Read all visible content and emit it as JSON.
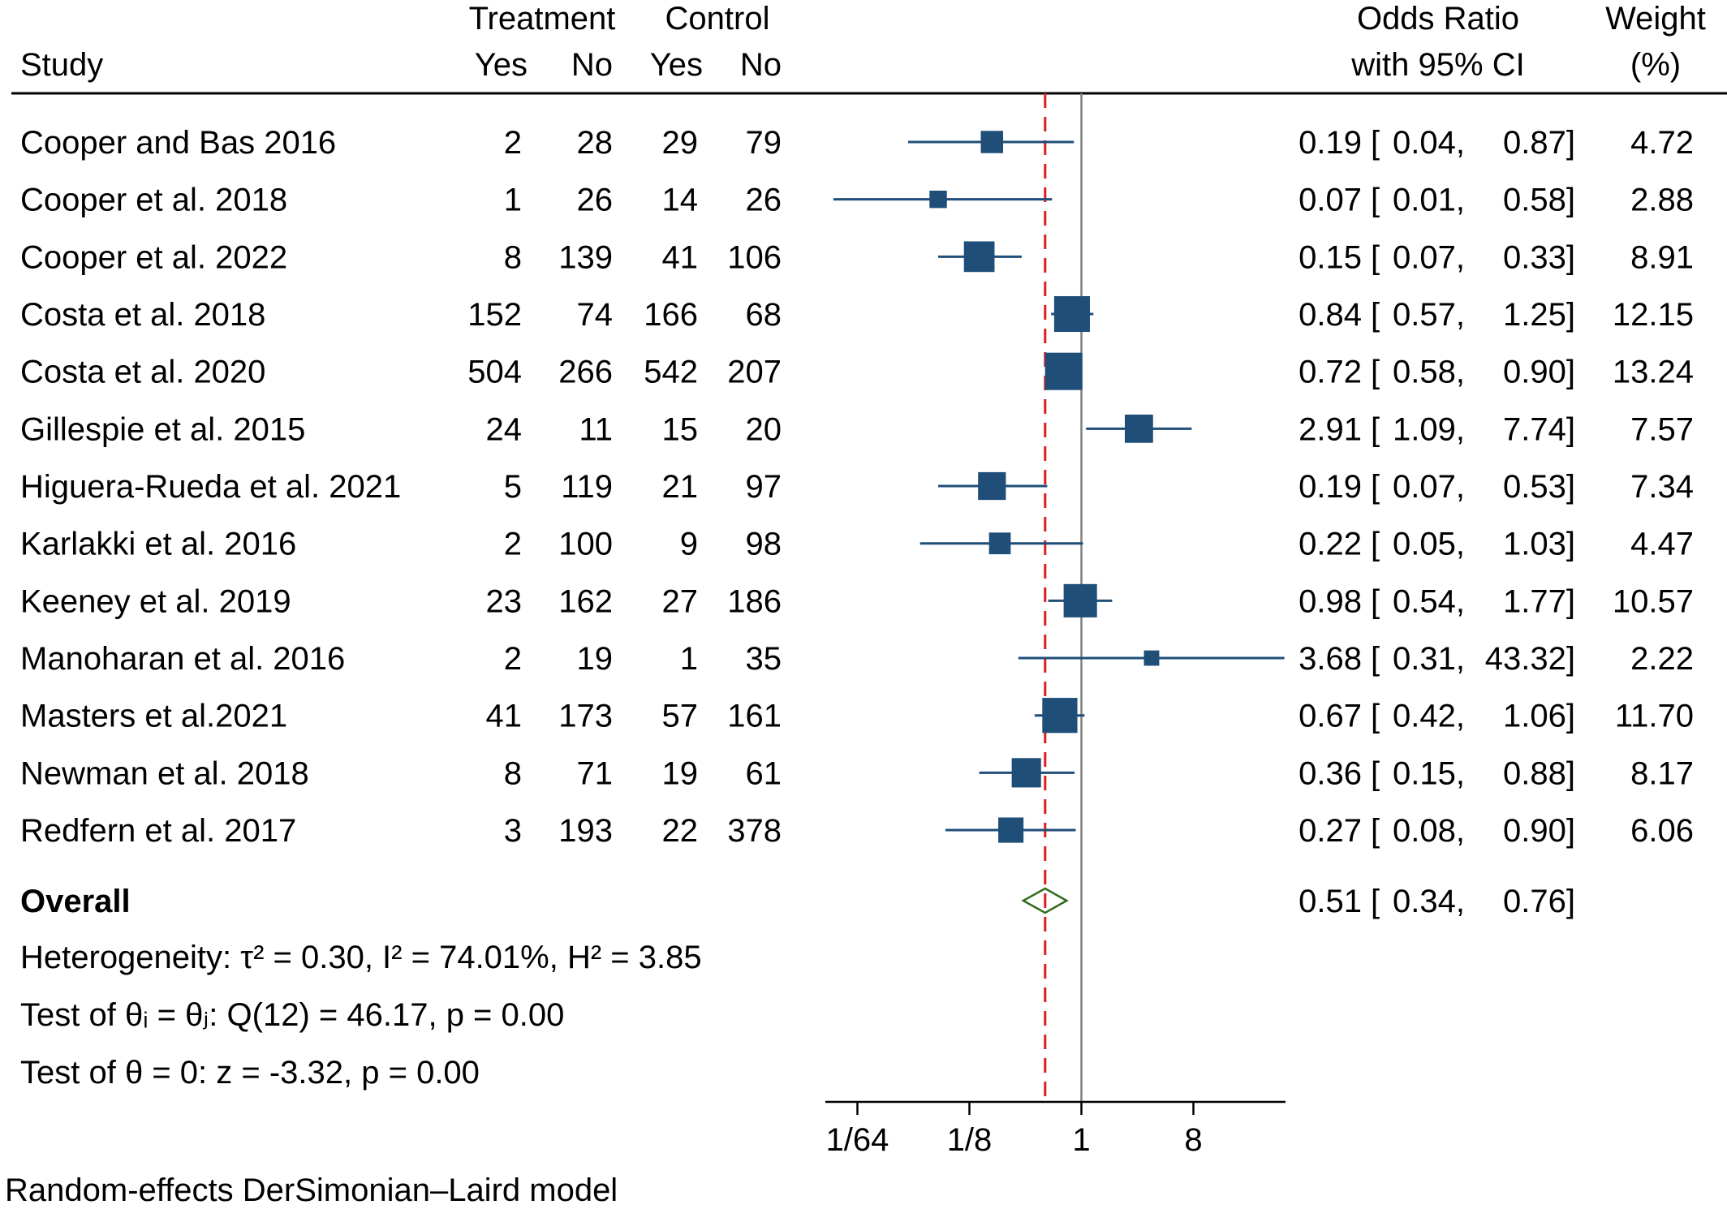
{
  "chart_data": {
    "type": "forest",
    "x_scale": "log2",
    "xlim": [
      0.0078125,
      32
    ],
    "xticks": [
      {
        "value": 0.015625,
        "label": "1/64"
      },
      {
        "value": 0.125,
        "label": "1/8"
      },
      {
        "value": 1,
        "label": "1"
      },
      {
        "value": 8,
        "label": "8"
      }
    ],
    "headers": {
      "study": "Study",
      "treatment": "Treatment",
      "control": "Control",
      "yes": "Yes",
      "no": "No",
      "or_line1": "Odds Ratio",
      "or_line2": "with 95% CI",
      "weight_line1": "Weight",
      "weight_line2": "(%)"
    },
    "studies": [
      {
        "study": "Cooper and Bas 2016",
        "t_yes": "2",
        "t_no": "28",
        "c_yes": "29",
        "c_no": "79",
        "or": 0.19,
        "lo": 0.04,
        "hi": 0.87,
        "or_text": "0.19",
        "lo_text": "0.04,",
        "hi_text": "0.87]",
        "weight": 4.72,
        "weight_text": "4.72"
      },
      {
        "study": "Cooper et al. 2018",
        "t_yes": "1",
        "t_no": "26",
        "c_yes": "14",
        "c_no": "26",
        "or": 0.07,
        "lo": 0.01,
        "hi": 0.58,
        "or_text": "0.07",
        "lo_text": "0.01,",
        "hi_text": "0.58]",
        "weight": 2.88,
        "weight_text": "2.88"
      },
      {
        "study": "Cooper et al. 2022",
        "t_yes": "8",
        "t_no": "139",
        "c_yes": "41",
        "c_no": "106",
        "or": 0.15,
        "lo": 0.07,
        "hi": 0.33,
        "or_text": "0.15",
        "lo_text": "0.07,",
        "hi_text": "0.33]",
        "weight": 8.91,
        "weight_text": "8.91"
      },
      {
        "study": "Costa et al. 2018",
        "t_yes": "152",
        "t_no": "74",
        "c_yes": "166",
        "c_no": "68",
        "or": 0.84,
        "lo": 0.57,
        "hi": 1.25,
        "or_text": "0.84",
        "lo_text": "0.57,",
        "hi_text": "1.25]",
        "weight": 12.15,
        "weight_text": "12.15"
      },
      {
        "study": "Costa et al. 2020",
        "t_yes": "504",
        "t_no": "266",
        "c_yes": "542",
        "c_no": "207",
        "or": 0.72,
        "lo": 0.58,
        "hi": 0.9,
        "or_text": "0.72",
        "lo_text": "0.58,",
        "hi_text": "0.90]",
        "weight": 13.24,
        "weight_text": "13.24"
      },
      {
        "study": "Gillespie et al. 2015",
        "t_yes": "24",
        "t_no": "11",
        "c_yes": "15",
        "c_no": "20",
        "or": 2.91,
        "lo": 1.09,
        "hi": 7.74,
        "or_text": "2.91",
        "lo_text": "1.09,",
        "hi_text": "7.74]",
        "weight": 7.57,
        "weight_text": "7.57"
      },
      {
        "study": "Higuera-Rueda et al. 2021",
        "t_yes": "5",
        "t_no": "119",
        "c_yes": "21",
        "c_no": "97",
        "or": 0.19,
        "lo": 0.07,
        "hi": 0.53,
        "or_text": "0.19",
        "lo_text": "0.07,",
        "hi_text": "0.53]",
        "weight": 7.34,
        "weight_text": "7.34"
      },
      {
        "study": "Karlakki et al. 2016",
        "t_yes": "2",
        "t_no": "100",
        "c_yes": "9",
        "c_no": "98",
        "or": 0.22,
        "lo": 0.05,
        "hi": 1.03,
        "or_text": "0.22",
        "lo_text": "0.05,",
        "hi_text": "1.03]",
        "weight": 4.47,
        "weight_text": "4.47"
      },
      {
        "study": "Keeney et al. 2019",
        "t_yes": "23",
        "t_no": "162",
        "c_yes": "27",
        "c_no": "186",
        "or": 0.98,
        "lo": 0.54,
        "hi": 1.77,
        "or_text": "0.98",
        "lo_text": "0.54,",
        "hi_text": "1.77]",
        "weight": 10.57,
        "weight_text": "10.57"
      },
      {
        "study": "Manoharan et al. 2016",
        "t_yes": "2",
        "t_no": "19",
        "c_yes": "1",
        "c_no": "35",
        "or": 3.68,
        "lo": 0.31,
        "hi": 43.32,
        "or_text": "3.68",
        "lo_text": "0.31,",
        "hi_text": "43.32]",
        "weight": 2.22,
        "weight_text": "2.22"
      },
      {
        "study": "Masters et al.2021",
        "t_yes": "41",
        "t_no": "173",
        "c_yes": "57",
        "c_no": "161",
        "or": 0.67,
        "lo": 0.42,
        "hi": 1.06,
        "or_text": "0.67",
        "lo_text": "0.42,",
        "hi_text": "1.06]",
        "weight": 11.7,
        "weight_text": "11.70"
      },
      {
        "study": "Newman et al. 2018",
        "t_yes": "8",
        "t_no": "71",
        "c_yes": "19",
        "c_no": "61",
        "or": 0.36,
        "lo": 0.15,
        "hi": 0.88,
        "or_text": "0.36",
        "lo_text": "0.15,",
        "hi_text": "0.88]",
        "weight": 8.17,
        "weight_text": "8.17"
      },
      {
        "study": "Redfern et al. 2017",
        "t_yes": "3",
        "t_no": "193",
        "c_yes": "22",
        "c_no": "378",
        "or": 0.27,
        "lo": 0.08,
        "hi": 0.9,
        "or_text": "0.27",
        "lo_text": "0.08,",
        "hi_text": "0.90]",
        "weight": 6.06,
        "weight_text": "6.06"
      }
    ],
    "overall": {
      "label": "Overall",
      "or": 0.51,
      "lo": 0.34,
      "hi": 0.76,
      "or_text": "0.51",
      "lo_text": "0.34,",
      "hi_text": "0.76]"
    },
    "ci_open_bracket": "[",
    "footer_lines": [
      "Heterogeneity: τ² = 0.30, I² = 74.01%, H² = 3.85",
      "Test of θᵢ = θⱼ: Q(12) = 46.17, p = 0.00",
      "Test of θ = 0: z = -3.32, p = 0.00"
    ],
    "model_note": "Random-effects DerSimonian–Laird model",
    "colors": {
      "study_marker": "#1f4e79",
      "overall_diamond": "#2e6b1a",
      "overall_line": "#e31a1c",
      "null_line": "#808080",
      "text": "#000000"
    }
  }
}
